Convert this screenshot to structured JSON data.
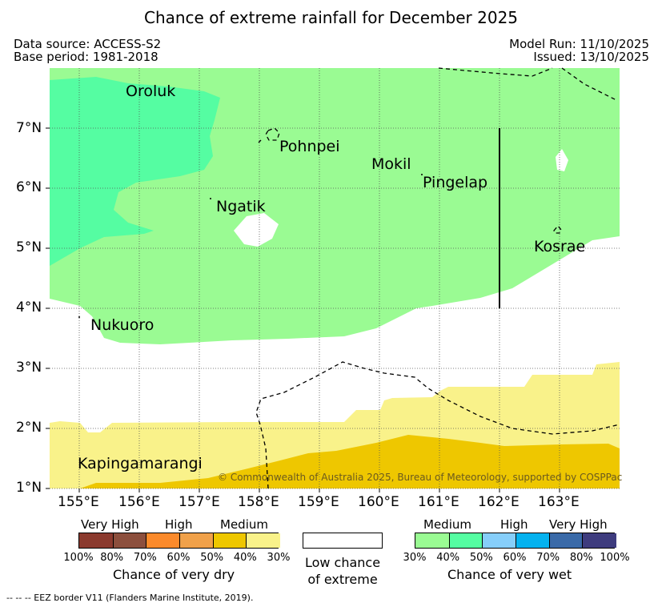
{
  "title": "Chance of extreme rainfall for December 2025",
  "meta": {
    "data_source": "Data source: ACCESS-S2",
    "base_period": "Base period: 1981-2018",
    "model_run": "Model Run: 11/10/2025",
    "issued": "Issued: 13/10/2025"
  },
  "map": {
    "lon_ticks": [
      "155°E",
      "156°E",
      "157°E",
      "158°E",
      "159°E",
      "160°E",
      "161°E",
      "162°E",
      "163°E"
    ],
    "lat_ticks": [
      "7°N",
      "6°N",
      "5°N",
      "4°N",
      "3°N",
      "2°N",
      "1°N"
    ],
    "places": {
      "oroluk": "Oroluk",
      "pohnpei": "Pohnpei",
      "mokil": "Mokil",
      "pingelap": "Pingelap",
      "ngatik": "Ngatik",
      "kosrae": "Kosrae",
      "nukuoro": "Nukuoro",
      "kapingamarangi": "Kapingamarangi"
    },
    "copyright": "© Commonwealth of Australia 2025, Bureau of Meteorology, supported by COSPPac"
  },
  "legend": {
    "dry": {
      "categories": [
        "Very High",
        "High",
        "Medium"
      ],
      "percents": [
        "100%",
        "80%",
        "70%",
        "60%",
        "50%",
        "40%",
        "30%"
      ],
      "title": "Chance of very dry",
      "colors": [
        "#8b3a2e",
        "#8c4f3d",
        "#fb8a2b",
        "#f0a14a",
        "#eec700",
        "#f9f28a"
      ]
    },
    "low": {
      "line1": "Low chance",
      "line2": "of extreme"
    },
    "wet": {
      "categories": [
        "Medium",
        "High",
        "Very High"
      ],
      "percents": [
        "30%",
        "40%",
        "50%",
        "60%",
        "70%",
        "80%",
        "100%"
      ],
      "title": "Chance of very wet",
      "colors": [
        "#9afb93",
        "#55fda2",
        "#86cefa",
        "#05b2ef",
        "#3a6aa8",
        "#3e3c7e"
      ]
    }
  },
  "footnote": "--  --  -- EEZ border V11 (Flanders Marine Institute, 2019)."
}
